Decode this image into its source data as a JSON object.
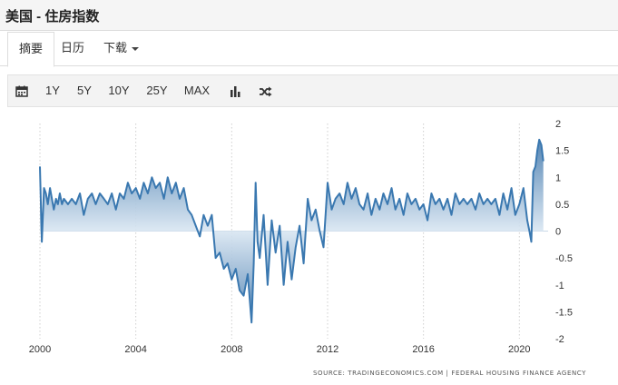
{
  "header": {
    "title": "美国 - 住房指数"
  },
  "tabs": [
    {
      "label": "摘要"
    },
    {
      "label": "日历"
    },
    {
      "label": "下载"
    }
  ],
  "toolbar": {
    "calendar_icon": "calendar-icon",
    "ranges": [
      "1Y",
      "5Y",
      "10Y",
      "25Y",
      "MAX"
    ],
    "chart_type_icon": "bar-chart-icon",
    "compare_icon": "shuffle-icon"
  },
  "source": "SOURCE: TRADINGECONOMICS.COM  |  FEDERAL HOUSING FINANCE AGENCY",
  "colors": {
    "line": "#3a78b0",
    "fill_top": "#2f6aa3",
    "fill_light": "#dce8f3",
    "grid": "#cfcfcf"
  },
  "chart_data": {
    "type": "area",
    "title": "",
    "xlabel": "",
    "ylabel": "",
    "xlim": [
      2000,
      2021.2
    ],
    "ylim": [
      -2,
      2
    ],
    "x_ticks": [
      "2000",
      "2004",
      "2008",
      "2012",
      "2016",
      "2020"
    ],
    "x_tick_values": [
      2000,
      2004,
      2008,
      2012,
      2016,
      2020
    ],
    "y_ticks": [
      "2",
      "1.5",
      "1",
      "0.5",
      "0",
      "-0.5",
      "-1",
      "-1.5",
      "-2"
    ],
    "y_tick_values": [
      2,
      1.5,
      1,
      0.5,
      0,
      -0.5,
      -1,
      -1.5,
      -2
    ],
    "grid": "vertical dotted at x ticks",
    "series": [
      {
        "x": [
          2000.0,
          2000.08,
          2000.17,
          2000.25,
          2000.33,
          2000.42,
          2000.5,
          2000.58,
          2000.67,
          2000.75,
          2000.83,
          2000.92,
          2001.0,
          2001.17,
          2001.33,
          2001.5,
          2001.67,
          2001.83,
          2002.0,
          2002.17,
          2002.33,
          2002.5,
          2002.67,
          2002.83,
          2003.0,
          2003.17,
          2003.33,
          2003.5,
          2003.67,
          2003.83,
          2004.0,
          2004.17,
          2004.33,
          2004.5,
          2004.67,
          2004.83,
          2005.0,
          2005.17,
          2005.33,
          2005.5,
          2005.67,
          2005.83,
          2006.0,
          2006.17,
          2006.33,
          2006.5,
          2006.67,
          2006.83,
          2007.0,
          2007.17,
          2007.33,
          2007.5,
          2007.67,
          2007.83,
          2008.0,
          2008.17,
          2008.33,
          2008.5,
          2008.67,
          2008.83,
          2008.92,
          2009.0,
          2009.08,
          2009.17,
          2009.33,
          2009.5,
          2009.67,
          2009.83,
          2010.0,
          2010.17,
          2010.33,
          2010.5,
          2010.67,
          2010.83,
          2011.0,
          2011.17,
          2011.33,
          2011.5,
          2011.67,
          2011.83,
          2012.0,
          2012.17,
          2012.33,
          2012.5,
          2012.67,
          2012.83,
          2013.0,
          2013.17,
          2013.33,
          2013.5,
          2013.67,
          2013.83,
          2014.0,
          2014.17,
          2014.33,
          2014.5,
          2014.67,
          2014.83,
          2015.0,
          2015.17,
          2015.33,
          2015.5,
          2015.67,
          2015.83,
          2016.0,
          2016.17,
          2016.33,
          2016.5,
          2016.67,
          2016.83,
          2017.0,
          2017.17,
          2017.33,
          2017.5,
          2017.67,
          2017.83,
          2018.0,
          2018.17,
          2018.33,
          2018.5,
          2018.67,
          2018.83,
          2019.0,
          2019.17,
          2019.33,
          2019.5,
          2019.67,
          2019.83,
          2020.0,
          2020.17,
          2020.33,
          2020.42,
          2020.5,
          2020.58,
          2020.67,
          2020.75,
          2020.83,
          2020.92,
          2021.0
        ],
        "values": [
          1.2,
          -0.2,
          0.8,
          0.7,
          0.5,
          0.8,
          0.6,
          0.4,
          0.6,
          0.5,
          0.7,
          0.5,
          0.6,
          0.5,
          0.6,
          0.5,
          0.7,
          0.3,
          0.6,
          0.7,
          0.5,
          0.7,
          0.6,
          0.5,
          0.7,
          0.4,
          0.7,
          0.6,
          0.9,
          0.7,
          0.8,
          0.6,
          0.9,
          0.7,
          1.0,
          0.8,
          0.9,
          0.6,
          1.0,
          0.7,
          0.9,
          0.6,
          0.8,
          0.4,
          0.3,
          0.1,
          -0.1,
          0.3,
          0.1,
          0.3,
          -0.5,
          -0.4,
          -0.7,
          -0.6,
          -0.9,
          -0.7,
          -1.1,
          -1.2,
          -0.8,
          -1.7,
          -0.6,
          0.9,
          -0.2,
          -0.5,
          0.3,
          -1.0,
          0.2,
          -0.4,
          0.1,
          -1.0,
          -0.2,
          -0.9,
          -0.3,
          0.1,
          -0.6,
          0.6,
          0.2,
          0.4,
          0.0,
          -0.3,
          0.9,
          0.4,
          0.6,
          0.7,
          0.5,
          0.9,
          0.6,
          0.8,
          0.5,
          0.4,
          0.7,
          0.3,
          0.6,
          0.4,
          0.7,
          0.5,
          0.8,
          0.4,
          0.6,
          0.3,
          0.7,
          0.5,
          0.6,
          0.4,
          0.5,
          0.2,
          0.7,
          0.5,
          0.6,
          0.4,
          0.6,
          0.3,
          0.7,
          0.5,
          0.6,
          0.5,
          0.6,
          0.4,
          0.7,
          0.5,
          0.6,
          0.5,
          0.6,
          0.3,
          0.7,
          0.4,
          0.8,
          0.3,
          0.5,
          0.8,
          0.2,
          0.0,
          -0.2,
          1.1,
          1.2,
          1.5,
          1.7,
          1.6,
          1.3
        ]
      }
    ]
  }
}
